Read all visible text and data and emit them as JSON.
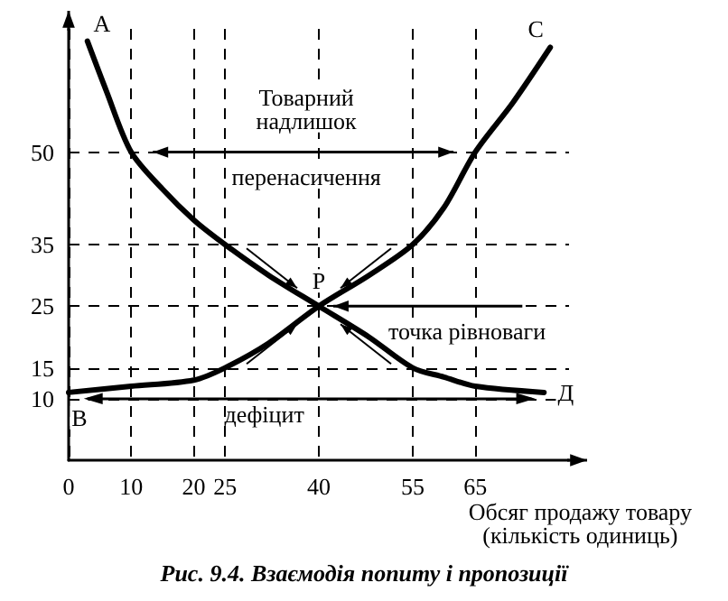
{
  "chart_data": {
    "type": "line",
    "title": "Рис. 9.4. Взаємодія попиту і пропозиції",
    "xlabel": "Обсяг продажу товару\n(кількість одиниць)",
    "xlim": [
      0,
      80
    ],
    "xticks": [
      0,
      10,
      20,
      25,
      40,
      55,
      65
    ],
    "ylim": [
      0,
      70
    ],
    "yticks": [
      10,
      15,
      25,
      35,
      50
    ],
    "grid": true,
    "marker": "none",
    "line_style": "solid",
    "series": [
      {
        "color": "#000000",
        "x": [
          3,
          6,
          10,
          15,
          20,
          25,
          32,
          40,
          48,
          55,
          60,
          65,
          76
        ],
        "values": [
          68,
          60,
          50,
          44,
          39,
          35,
          30,
          25,
          20,
          15,
          13.5,
          12,
          11
        ]
      },
      {
        "color": "#000000",
        "x": [
          0,
          10,
          20,
          25,
          32,
          40,
          48,
          55,
          60,
          65,
          71,
          77
        ],
        "values": [
          11,
          12,
          13,
          15,
          19,
          25,
          30,
          35,
          41,
          50,
          58,
          67
        ]
      }
    ],
    "annotations": [
      {
        "text": "A",
        "x": 3,
        "y": 68
      },
      {
        "text": "C",
        "x": 77,
        "y": 67
      },
      {
        "text": "B",
        "x": 0,
        "y": 11
      },
      {
        "text": "Д",
        "x": 76,
        "y": 11
      },
      {
        "text": "P",
        "x": 40,
        "y": 25
      },
      "Товарний\nнадлишок",
      "перенасичення",
      {
        "text": "точка рівноваги",
        "x": 40,
        "y": 25
      }
    ],
    "ref_lines": [
      {
        "axis": "y",
        "value": 10,
        "label": "дефіцит",
        "color": "#000000",
        "line_style": "solid"
      }
    ]
  }
}
